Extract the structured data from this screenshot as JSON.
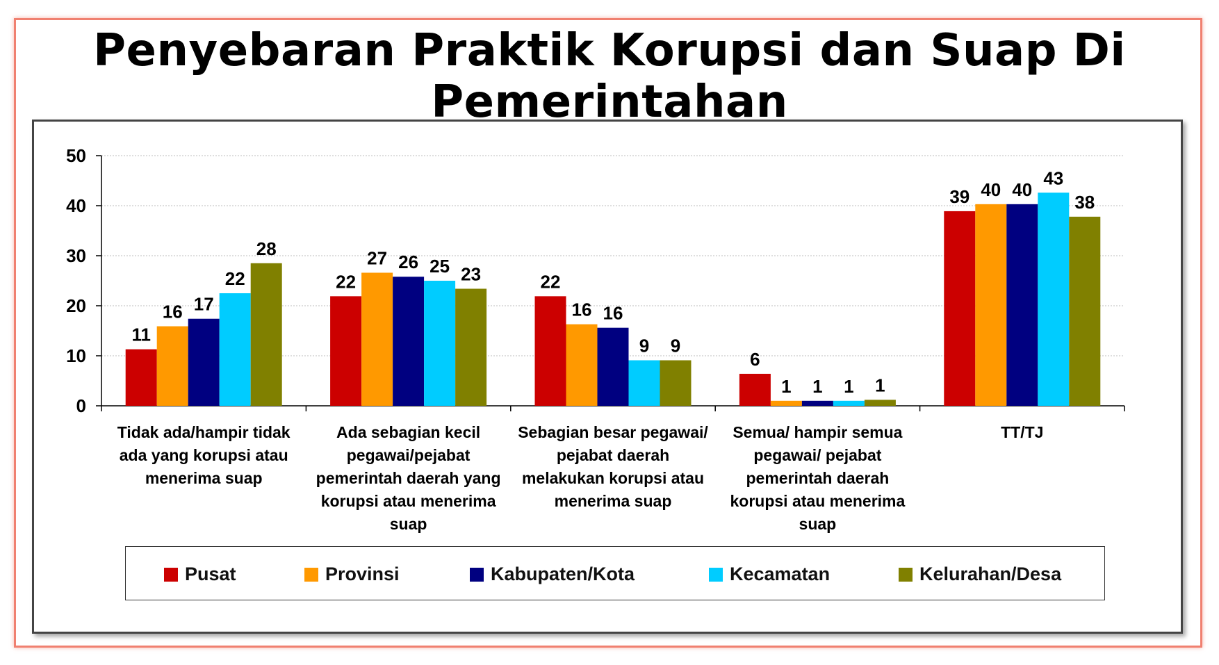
{
  "title": "Penyebaran Praktik Korupsi dan Suap Di Pemerintahan",
  "chart_data": {
    "type": "bar",
    "title": "Penyebaran Praktik Korupsi dan Suap Di Pemerintahan",
    "xlabel": "",
    "ylabel": "",
    "ylim": [
      0,
      50
    ],
    "yticks": [
      0,
      10,
      20,
      30,
      40,
      50
    ],
    "grid": true,
    "legend_position": "bottom",
    "categories": [
      "Tidak ada/hampir tidak ada yang korupsi atau menerima suap",
      "Ada sebagian kecil pegawai/pejabat pemerintah daerah yang korupsi atau menerima suap",
      "Sebagian besar pegawai/ pejabat daerah melakukan korupsi atau menerima suap",
      "Semua/ hampir semua pegawai/ pejabat pemerintah daerah korupsi atau menerima suap",
      "TT/TJ"
    ],
    "category_lines": [
      [
        "Tidak ada/hampir tidak",
        "ada yang korupsi atau",
        "menerima suap"
      ],
      [
        "Ada sebagian kecil",
        "pegawai/pejabat",
        "pemerintah daerah yang",
        "korupsi atau menerima",
        "suap"
      ],
      [
        "Sebagian besar pegawai/",
        "pejabat daerah",
        "melakukan korupsi atau",
        "menerima suap"
      ],
      [
        "Semua/ hampir semua",
        "pegawai/ pejabat",
        "pemerintah daerah",
        "korupsi atau menerima",
        "suap"
      ],
      [
        "TT/TJ"
      ]
    ],
    "series": [
      {
        "name": "Pusat",
        "color": "#cc0000",
        "values": [
          11.3,
          21.9,
          21.9,
          6.4,
          38.9
        ],
        "labels": [
          "11",
          "22",
          "22",
          "6",
          "39"
        ]
      },
      {
        "name": "Provinsi",
        "color": "#ff9900",
        "values": [
          15.9,
          26.6,
          16.3,
          1.0,
          40.3
        ],
        "labels": [
          "16",
          "27",
          "16",
          "1",
          "40"
        ]
      },
      {
        "name": "Kabupaten/Kota",
        "color": "#000080",
        "values": [
          17.4,
          25.8,
          15.6,
          1.0,
          40.3
        ],
        "labels": [
          "17",
          "26",
          "16",
          "1",
          "40"
        ]
      },
      {
        "name": "Kecamatan",
        "color": "#00ccff",
        "values": [
          22.5,
          25.0,
          9.1,
          1.0,
          42.6
        ],
        "labels": [
          "22",
          "25",
          "9",
          "1",
          "43"
        ]
      },
      {
        "name": "Kelurahan/Desa",
        "color": "#808000",
        "values": [
          28.5,
          23.4,
          9.1,
          1.2,
          37.8
        ],
        "labels": [
          "28",
          "23",
          "9",
          "1",
          "38"
        ]
      }
    ]
  }
}
